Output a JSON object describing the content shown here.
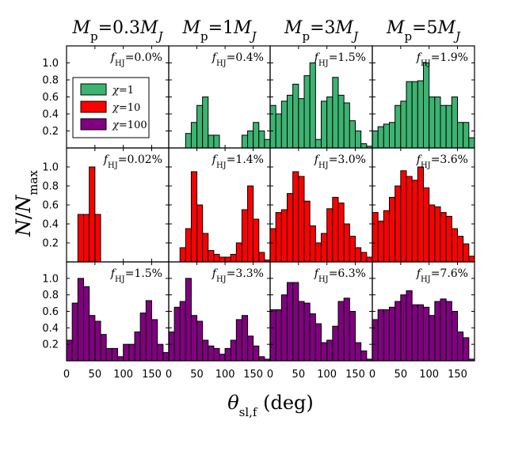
{
  "chart_data": {
    "type": "bar",
    "subtype": "histogram grid (3 rows x 4 columns)",
    "column_titles": [
      "M_p = 0.3 M_J",
      "M_p = 1 M_J",
      "M_p = 3 M_J",
      "M_p = 5 M_J"
    ],
    "xlabel": "θ_sl,f (deg)",
    "ylabel": "N / N_max",
    "xlim": [
      0,
      180
    ],
    "ylim": [
      0,
      1.2
    ],
    "xticks": [
      "0",
      "50",
      "100",
      "150"
    ],
    "yticks": [
      "0.2",
      "0.4",
      "0.6",
      "0.8",
      "1.0"
    ],
    "bin_width_deg": 10,
    "legend": {
      "placement": "top-left panel, upper-left",
      "entries": [
        {
          "label": "χ = 1",
          "color": "#3cb371"
        },
        {
          "label": "χ = 10",
          "color": "#ff0000"
        },
        {
          "label": "χ = 100",
          "color": "#800080"
        }
      ]
    },
    "rows": [
      {
        "chi_label": "χ = 1",
        "color": "#3cb371",
        "panels": [
          {
            "annotation": "f_HJ = 0.0%",
            "values": []
          },
          {
            "annotation": "f_HJ = 0.4%",
            "values": [
              0,
              0,
              0,
              0.17,
              0.3,
              0.5,
              0.6,
              0.15,
              0.15,
              0,
              0,
              0,
              0,
              0.15,
              0.2,
              0.3,
              0.2,
              0.1
            ]
          },
          {
            "annotation": "f_HJ = 1.5%",
            "values": [
              0.5,
              0.4,
              0.55,
              0.62,
              0.75,
              0.58,
              0.85,
              1.0,
              0.1,
              0.55,
              0.6,
              0.83,
              0.62,
              0.53,
              0.32,
              0.2,
              0.05,
              0.02
            ]
          },
          {
            "annotation": "f_HJ = 1.9%",
            "values": [
              0.2,
              0.25,
              0.28,
              0.3,
              0.5,
              0.55,
              0.78,
              0.78,
              0.79,
              1.0,
              0.6,
              0.6,
              0.5,
              0.5,
              0.6,
              0.3,
              0.3,
              0.12
            ]
          }
        ]
      },
      {
        "chi_label": "χ = 10",
        "color": "#ff0000",
        "panels": [
          {
            "annotation": "f_HJ = 0.02%",
            "values": [
              0,
              0,
              0.5,
              0.5,
              1.0,
              0.5,
              0,
              0,
              0,
              0,
              0,
              0,
              0,
              0,
              0,
              0,
              0,
              0
            ]
          },
          {
            "annotation": "f_HJ = 1.4%",
            "values": [
              0,
              0,
              0.15,
              0.35,
              0.95,
              0.6,
              0.3,
              0.12,
              0.08,
              0.05,
              0.05,
              0.08,
              0.2,
              0.55,
              0.8,
              0.45,
              0.1,
              0.02
            ]
          },
          {
            "annotation": "f_HJ = 3.0%",
            "values": [
              0.35,
              0.52,
              0.55,
              0.72,
              0.95,
              0.9,
              0.64,
              0.38,
              0.2,
              0.3,
              0.56,
              0.68,
              0.62,
              0.4,
              0.27,
              0.15,
              0.1,
              0.05
            ]
          },
          {
            "annotation": "f_HJ = 3.6%",
            "values": [
              0.52,
              0.43,
              0.54,
              0.68,
              0.8,
              0.96,
              0.9,
              0.86,
              1.0,
              0.78,
              0.6,
              0.58,
              0.52,
              0.48,
              0.35,
              0.27,
              0.19,
              0.06
            ]
          }
        ]
      },
      {
        "chi_label": "χ = 100",
        "color": "#800080",
        "panels": [
          {
            "annotation": "f_HJ = 1.5%",
            "values": [
              0.25,
              0.7,
              1.0,
              0.9,
              0.55,
              0.48,
              0.32,
              0.15,
              0.15,
              0.05,
              0.2,
              0.2,
              0.35,
              0.58,
              0.73,
              0.5,
              0.2,
              0.1
            ]
          },
          {
            "annotation": "f_HJ = 3.3%",
            "values": [
              0.35,
              0.65,
              0.72,
              1.0,
              0.55,
              0.48,
              0.25,
              0.18,
              0.15,
              0.08,
              0.15,
              0.25,
              0.5,
              0.55,
              0.3,
              0.18,
              0.05,
              0.02
            ]
          },
          {
            "annotation": "f_HJ = 6.3%",
            "values": [
              0.62,
              0.62,
              0.8,
              0.95,
              0.95,
              0.72,
              0.7,
              0.57,
              0.45,
              0.22,
              0.25,
              0.42,
              0.72,
              0.76,
              0.6,
              0.22,
              0.12,
              0.02
            ]
          },
          {
            "annotation": "f_HJ = 7.6%",
            "values": [
              0.5,
              0.62,
              0.62,
              0.65,
              0.72,
              0.8,
              0.85,
              0.68,
              0.68,
              0.65,
              0.55,
              0.72,
              0.75,
              0.72,
              0.6,
              0.35,
              0.28,
              0.02
            ]
          }
        ]
      }
    ]
  }
}
